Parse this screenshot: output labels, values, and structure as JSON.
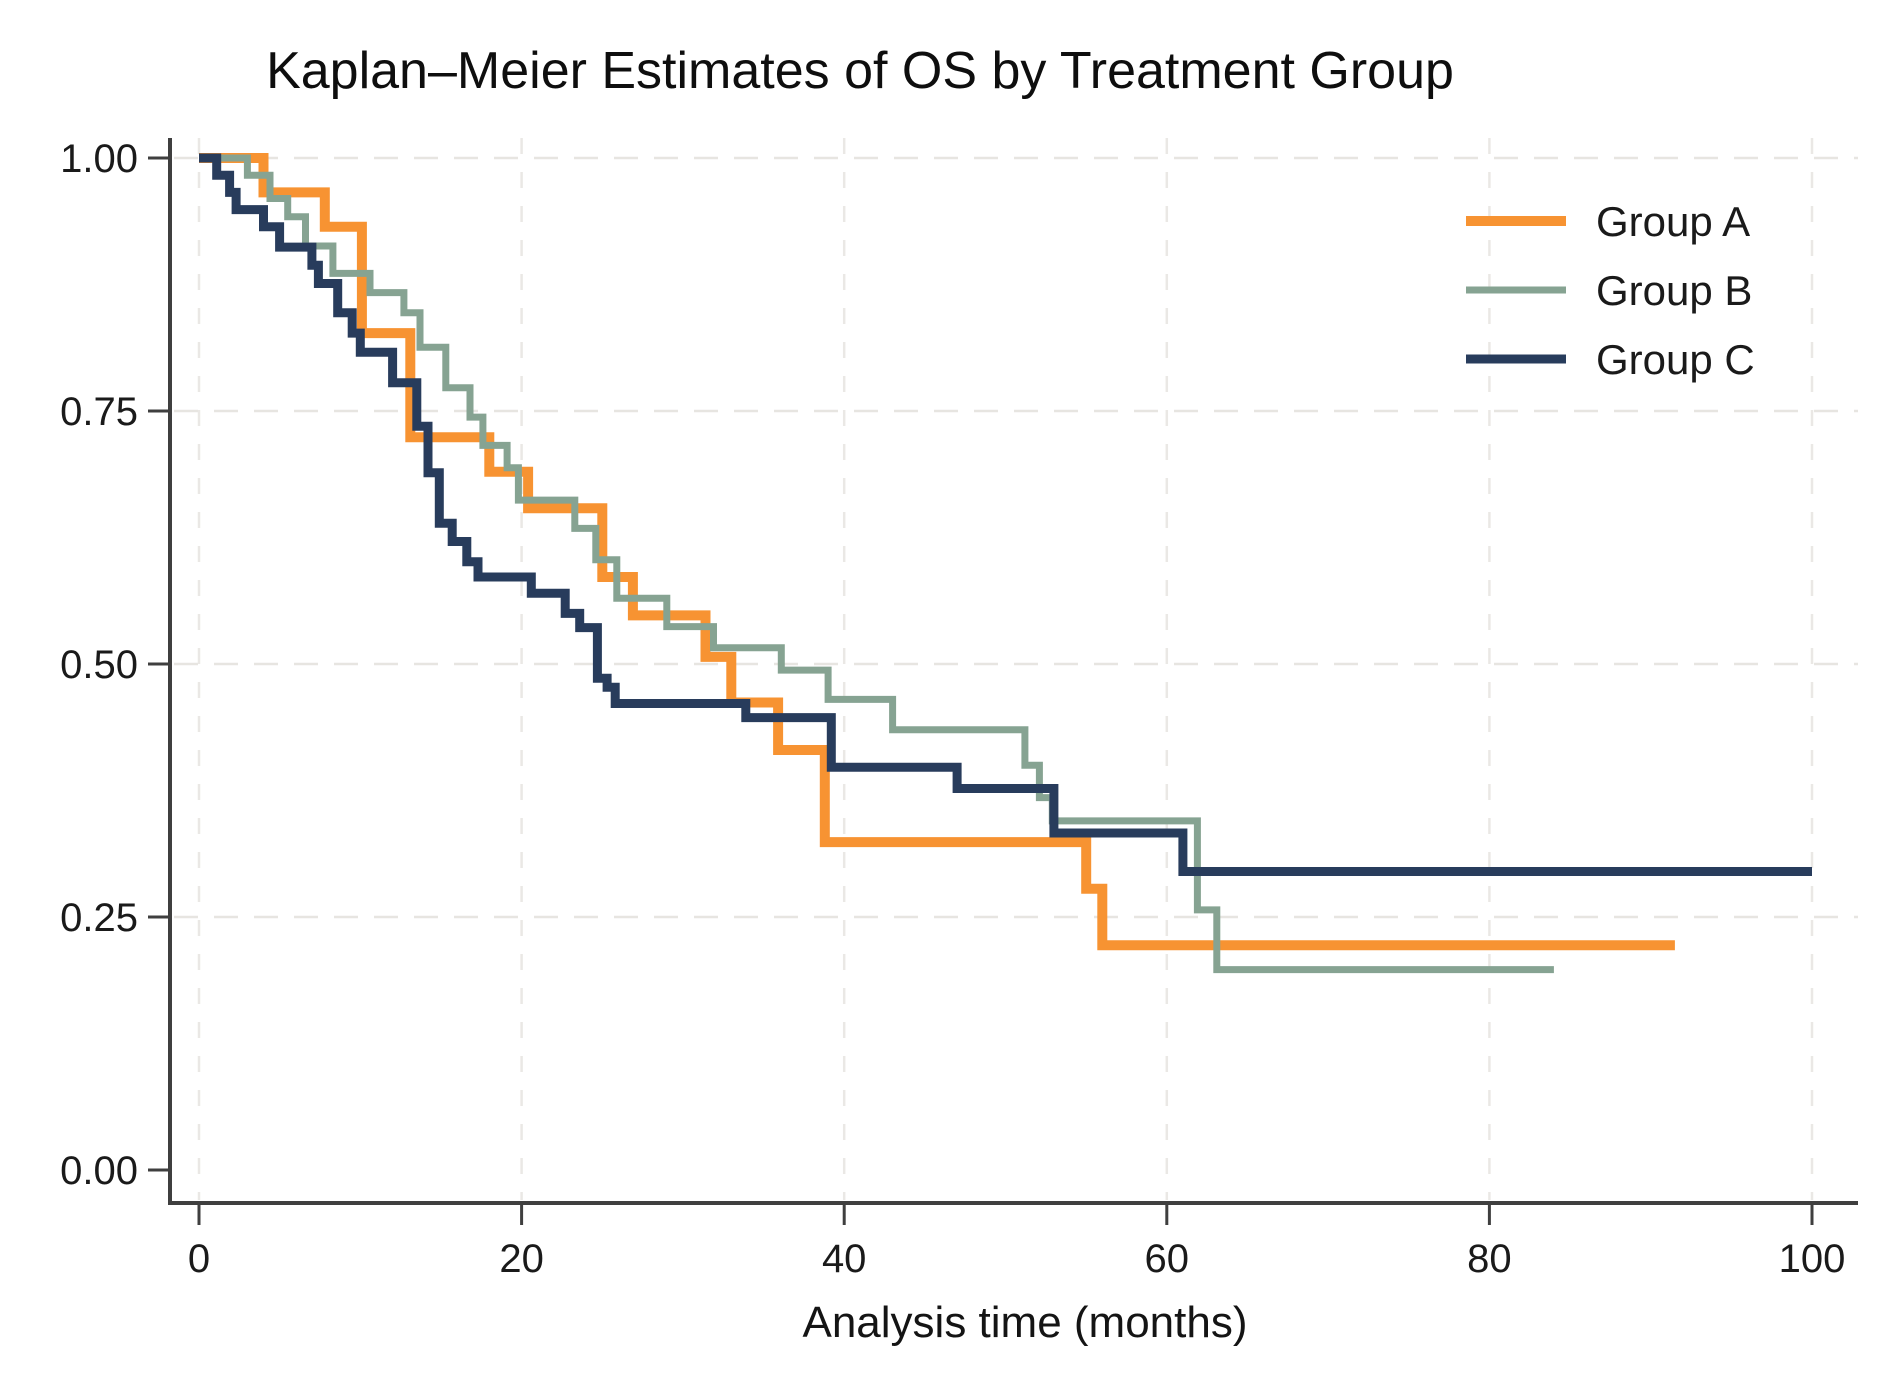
{
  "title": "Kaplan–Meier Estimates of OS by Treatment Group",
  "chart_data": {
    "type": "line",
    "subtype": "kaplan-meier-step",
    "title": "Kaplan–Meier Estimates of OS by Treatment Group",
    "xlabel": "Analysis time (months)",
    "ylabel": "",
    "xlim": [
      0,
      100
    ],
    "ylim": [
      0.0,
      1.0
    ],
    "grid": "dashed",
    "legend_position": "top-right",
    "xticks": [
      0,
      20,
      40,
      60,
      80,
      100
    ],
    "yticks": [
      {
        "label": "1.00",
        "value": 1.0
      },
      {
        "label": "0.75",
        "value": 0.75
      },
      {
        "label": "0.50",
        "value": 0.5
      },
      {
        "label": "0.25",
        "value": 0.25
      },
      {
        "label": "0.00",
        "value": 0.0
      }
    ],
    "series": [
      {
        "name": "Group A",
        "color": "#F79332",
        "end_month": 91.5,
        "points": [
          [
            0,
            1.0
          ],
          [
            4.0,
            0.966
          ],
          [
            7.8,
            0.932
          ],
          [
            10.1,
            0.827
          ],
          [
            13.1,
            0.724
          ],
          [
            18.0,
            0.69
          ],
          [
            20.4,
            0.654
          ],
          [
            25.0,
            0.586
          ],
          [
            26.9,
            0.548
          ],
          [
            31.4,
            0.507
          ],
          [
            33.0,
            0.462
          ],
          [
            35.9,
            0.415
          ],
          [
            38.8,
            0.324
          ],
          [
            55.0,
            0.278
          ],
          [
            56.0,
            0.222
          ]
        ]
      },
      {
        "name": "Group B",
        "color": "#86A392",
        "end_month": 84.0,
        "points": [
          [
            0,
            1.0
          ],
          [
            3.0,
            0.983
          ],
          [
            4.4,
            0.96
          ],
          [
            5.5,
            0.942
          ],
          [
            6.6,
            0.913
          ],
          [
            8.3,
            0.886
          ],
          [
            10.6,
            0.867
          ],
          [
            12.7,
            0.847
          ],
          [
            13.7,
            0.813
          ],
          [
            15.3,
            0.773
          ],
          [
            16.8,
            0.744
          ],
          [
            17.6,
            0.716
          ],
          [
            19.1,
            0.694
          ],
          [
            19.8,
            0.662
          ],
          [
            23.3,
            0.634
          ],
          [
            24.6,
            0.603
          ],
          [
            25.9,
            0.565
          ],
          [
            29.0,
            0.537
          ],
          [
            31.9,
            0.516
          ],
          [
            36.1,
            0.494
          ],
          [
            39.0,
            0.465
          ],
          [
            43.0,
            0.435
          ],
          [
            51.2,
            0.4
          ],
          [
            52.1,
            0.368
          ],
          [
            52.9,
            0.345
          ],
          [
            61.9,
            0.257
          ],
          [
            63.1,
            0.198
          ]
        ]
      },
      {
        "name": "Group C",
        "color": "#283C5C",
        "end_month": 100.0,
        "points": [
          [
            0,
            1.0
          ],
          [
            1.1,
            0.983
          ],
          [
            1.9,
            0.966
          ],
          [
            2.3,
            0.949
          ],
          [
            4.0,
            0.932
          ],
          [
            5.0,
            0.912
          ],
          [
            7.0,
            0.894
          ],
          [
            7.4,
            0.876
          ],
          [
            8.6,
            0.847
          ],
          [
            9.5,
            0.827
          ],
          [
            10.0,
            0.808
          ],
          [
            12.0,
            0.778
          ],
          [
            13.5,
            0.735
          ],
          [
            14.2,
            0.689
          ],
          [
            14.9,
            0.639
          ],
          [
            15.7,
            0.621
          ],
          [
            16.6,
            0.601
          ],
          [
            17.3,
            0.586
          ],
          [
            20.6,
            0.57
          ],
          [
            22.7,
            0.55
          ],
          [
            23.6,
            0.536
          ],
          [
            24.7,
            0.486
          ],
          [
            25.3,
            0.477
          ],
          [
            25.8,
            0.461
          ],
          [
            33.9,
            0.447
          ],
          [
            39.2,
            0.398
          ],
          [
            47.0,
            0.377
          ],
          [
            53.0,
            0.333
          ],
          [
            61.0,
            0.295
          ]
        ]
      }
    ],
    "legend_entries": [
      "Group A",
      "Group B",
      "Group C"
    ],
    "colors": {
      "axis": "#3f3f3f",
      "gridline": "#e7e5e1",
      "text": "#1a1a1a"
    }
  }
}
